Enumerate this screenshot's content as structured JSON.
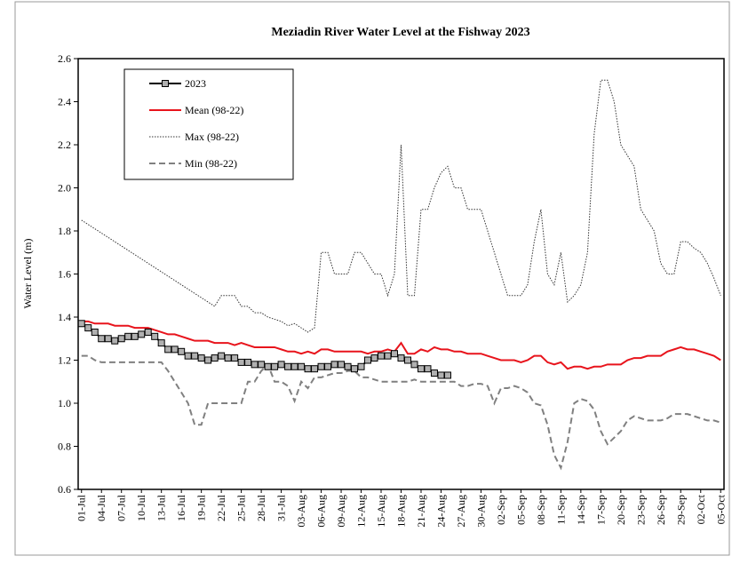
{
  "chart_data": {
    "type": "line",
    "title": "Meziadin River Water Level at the Fishway 2023",
    "y_label": "Water Level (m)",
    "categories": [
      "01-Jul",
      null,
      null,
      "04-Jul",
      null,
      null,
      "07-Jul",
      null,
      null,
      "10-Jul",
      null,
      null,
      "13-Jul",
      null,
      null,
      "16-Jul",
      null,
      null,
      "19-Jul",
      null,
      null,
      "22-Jul",
      null,
      null,
      "25-Jul",
      null,
      null,
      "28-Jul",
      null,
      null,
      "31-Jul",
      null,
      null,
      "03-Aug",
      null,
      null,
      "06-Aug",
      null,
      null,
      "09-Aug",
      null,
      null,
      "12-Aug",
      null,
      null,
      "15-Aug",
      null,
      null,
      "18-Aug",
      null,
      null,
      "21-Aug",
      null,
      null,
      "24-Aug",
      null,
      null,
      "27-Aug",
      null,
      null,
      "30-Aug",
      null,
      null,
      "02-Sep",
      null,
      null,
      "05-Sep",
      null,
      null,
      "08-Sep",
      null,
      null,
      "11-Sep",
      null,
      null,
      "14-Sep",
      null,
      null,
      "17-Sep",
      null,
      null,
      "20-Sep",
      null,
      null,
      "23-Sep",
      null,
      null,
      "26-Sep",
      null,
      null,
      "29-Sep",
      null,
      null,
      "02-Oct",
      null,
      null,
      "05-Oct"
    ],
    "ylim": [
      0.6,
      2.6
    ],
    "yticks": [
      0.6,
      0.8,
      {
        "value": 1.0,
        "label": "1.0"
      },
      1.2,
      1.4,
      1.6,
      1.8,
      {
        "value": 2.0,
        "label": "2.0"
      },
      2.2,
      2.4,
      2.6
    ],
    "grid": false,
    "legend": "top-left",
    "series": [
      {
        "name": "2023",
        "color": "#000000",
        "line_style": "solid",
        "marker": "square",
        "marker_color": "#b0b0b0",
        "values": [
          1.37,
          1.35,
          1.33,
          1.3,
          1.3,
          1.29,
          1.3,
          1.31,
          1.31,
          1.32,
          1.33,
          1.31,
          1.28,
          1.25,
          1.25,
          1.24,
          1.22,
          1.22,
          1.21,
          1.2,
          1.21,
          1.22,
          1.21,
          1.21,
          1.19,
          1.19,
          1.18,
          1.18,
          1.17,
          1.17,
          1.18,
          1.17,
          1.17,
          1.17,
          1.16,
          1.16,
          1.17,
          1.17,
          1.18,
          1.18,
          1.17,
          1.16,
          1.17,
          1.2,
          1.21,
          1.22,
          1.22,
          1.23,
          1.21,
          1.2,
          1.18,
          1.16,
          1.16,
          1.14,
          1.13,
          1.13,
          null,
          null,
          null,
          null,
          null,
          null,
          null,
          null,
          null,
          null,
          null,
          null,
          null,
          null,
          null,
          null,
          null,
          null,
          null,
          null,
          null,
          null,
          null,
          null,
          null,
          null,
          null,
          null,
          null,
          null,
          null,
          null,
          null,
          null,
          null,
          null,
          null,
          null,
          null,
          null,
          null
        ]
      },
      {
        "name": "Mean (98-22)",
        "color": "#e8141c",
        "line_style": "solid",
        "values": [
          1.38,
          1.38,
          1.37,
          1.37,
          1.37,
          1.36,
          1.36,
          1.36,
          1.35,
          1.35,
          1.35,
          1.34,
          1.33,
          1.32,
          1.32,
          1.31,
          1.3,
          1.29,
          1.29,
          1.29,
          1.28,
          1.28,
          1.28,
          1.27,
          1.28,
          1.27,
          1.26,
          1.26,
          1.26,
          1.26,
          1.25,
          1.24,
          1.24,
          1.23,
          1.24,
          1.23,
          1.25,
          1.25,
          1.24,
          1.24,
          1.24,
          1.24,
          1.24,
          1.23,
          1.24,
          1.24,
          1.25,
          1.24,
          1.28,
          1.23,
          1.23,
          1.25,
          1.24,
          1.26,
          1.25,
          1.25,
          1.24,
          1.24,
          1.23,
          1.23,
          1.23,
          1.22,
          1.21,
          1.2,
          1.2,
          1.2,
          1.19,
          1.2,
          1.22,
          1.22,
          1.19,
          1.18,
          1.19,
          1.16,
          1.17,
          1.17,
          1.16,
          1.17,
          1.17,
          1.18,
          1.18,
          1.18,
          1.2,
          1.21,
          1.21,
          1.22,
          1.22,
          1.22,
          1.24,
          1.25,
          1.26,
          1.25,
          1.25,
          1.24,
          1.23,
          1.22,
          1.2
        ]
      },
      {
        "name": "Max (98-22)",
        "color": "#333333",
        "line_style": "dotted",
        "values": [
          1.85,
          1.83,
          1.81,
          1.79,
          1.77,
          1.75,
          1.73,
          1.71,
          1.69,
          1.67,
          1.65,
          1.63,
          1.61,
          1.59,
          1.57,
          1.55,
          1.53,
          1.51,
          1.49,
          1.47,
          1.45,
          1.5,
          1.5,
          1.5,
          1.45,
          1.45,
          1.42,
          1.42,
          1.4,
          1.39,
          1.38,
          1.36,
          1.37,
          1.35,
          1.33,
          1.35,
          1.7,
          1.7,
          1.6,
          1.6,
          1.6,
          1.7,
          1.7,
          1.65,
          1.6,
          1.6,
          1.5,
          1.6,
          2.2,
          1.5,
          1.5,
          1.9,
          1.9,
          2.0,
          2.07,
          2.1,
          2.0,
          2.0,
          1.9,
          1.9,
          1.9,
          1.8,
          1.7,
          1.6,
          1.5,
          1.5,
          1.5,
          1.55,
          1.75,
          1.9,
          1.6,
          1.55,
          1.7,
          1.47,
          1.5,
          1.55,
          1.7,
          2.25,
          2.5,
          2.5,
          2.4,
          2.2,
          2.15,
          2.1,
          1.9,
          1.85,
          1.8,
          1.65,
          1.6,
          1.6,
          1.75,
          1.75,
          1.72,
          1.7,
          1.65,
          1.58,
          1.5
        ]
      },
      {
        "name": "Min (98-22)",
        "color": "#808080",
        "line_style": "dashed",
        "values": [
          1.22,
          1.22,
          1.2,
          1.19,
          1.19,
          1.19,
          1.19,
          1.19,
          1.19,
          1.19,
          1.19,
          1.19,
          1.19,
          1.15,
          1.1,
          1.05,
          1.0,
          0.9,
          0.9,
          1.0,
          1.0,
          1.0,
          1.0,
          1.0,
          1.0,
          1.1,
          1.1,
          1.15,
          1.18,
          1.1,
          1.1,
          1.08,
          1.01,
          1.1,
          1.07,
          1.12,
          1.12,
          1.13,
          1.14,
          1.14,
          1.15,
          1.15,
          1.12,
          1.12,
          1.11,
          1.1,
          1.1,
          1.1,
          1.1,
          1.1,
          1.11,
          1.1,
          1.1,
          1.1,
          1.1,
          1.1,
          1.1,
          1.08,
          1.08,
          1.09,
          1.09,
          1.08,
          1.0,
          1.07,
          1.07,
          1.08,
          1.07,
          1.05,
          1.0,
          0.99,
          0.9,
          0.76,
          0.7,
          0.82,
          1.0,
          1.02,
          1.01,
          0.97,
          0.87,
          0.81,
          0.84,
          0.87,
          0.92,
          0.94,
          0.93,
          0.92,
          0.92,
          0.92,
          0.93,
          0.95,
          0.95,
          0.95,
          0.94,
          0.93,
          0.92,
          0.92,
          0.91
        ]
      }
    ]
  }
}
